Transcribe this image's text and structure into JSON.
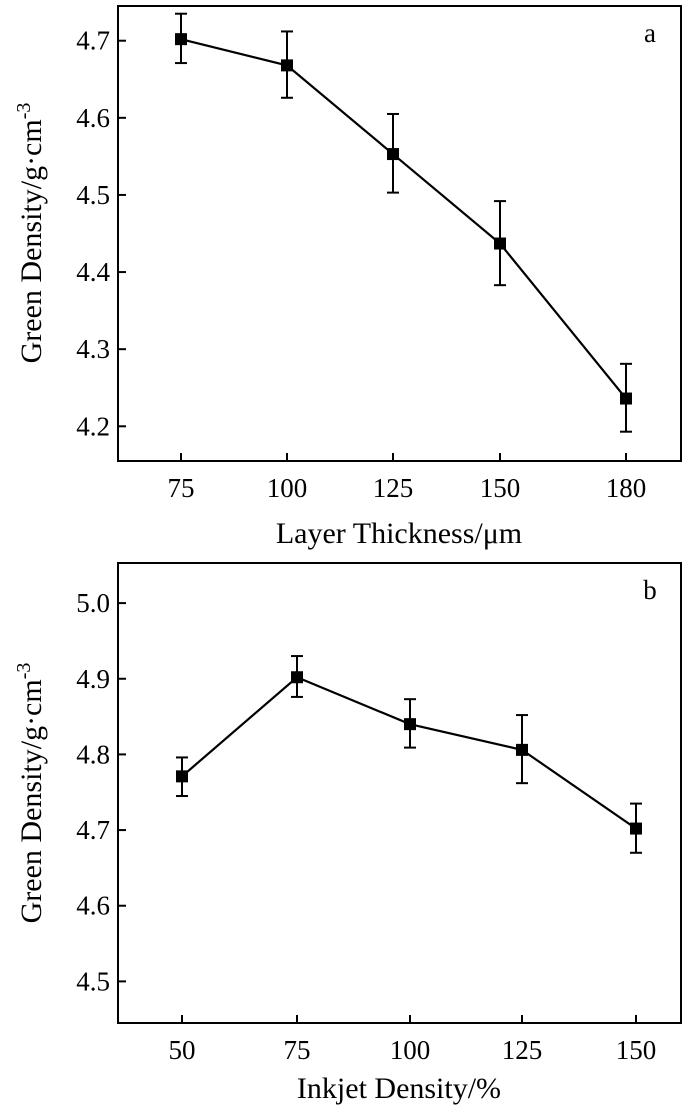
{
  "chart_data": [
    {
      "id": "a",
      "type": "line",
      "panel_label": "a",
      "xlabel": "Layer Thickness/μm",
      "ylabel_main": "Green Density/g·cm",
      "ylabel_sup": "-3",
      "categories": [
        "75",
        "100",
        "125",
        "150",
        "180"
      ],
      "yticks": [
        "4.2",
        "4.3",
        "4.4",
        "4.5",
        "4.6",
        "4.7"
      ],
      "ylim": [
        4.155,
        4.745
      ],
      "series": [
        {
          "name": "Green Density",
          "values": [
            4.702,
            4.668,
            4.553,
            4.437,
            4.236
          ],
          "errors_plus": [
            0.033,
            0.044,
            0.052,
            0.055,
            0.045
          ],
          "errors_minus": [
            0.031,
            0.042,
            0.05,
            0.054,
            0.043
          ]
        }
      ]
    },
    {
      "id": "b",
      "type": "line",
      "panel_label": "b",
      "xlabel": "Inkjet Density/%",
      "ylabel_main": "Green Density/g·cm",
      "ylabel_sup": "-3",
      "categories": [
        "50",
        "75",
        "100",
        "125",
        "150"
      ],
      "yticks": [
        "4.5",
        "4.6",
        "4.7",
        "4.8",
        "4.9",
        "5.0"
      ],
      "ylim": [
        4.445,
        5.053
      ],
      "series": [
        {
          "name": "Green Density",
          "values": [
            4.771,
            4.902,
            4.84,
            4.806,
            4.702
          ],
          "errors_plus": [
            0.025,
            0.028,
            0.033,
            0.046,
            0.033
          ],
          "errors_minus": [
            0.026,
            0.026,
            0.031,
            0.044,
            0.032
          ]
        }
      ]
    }
  ]
}
